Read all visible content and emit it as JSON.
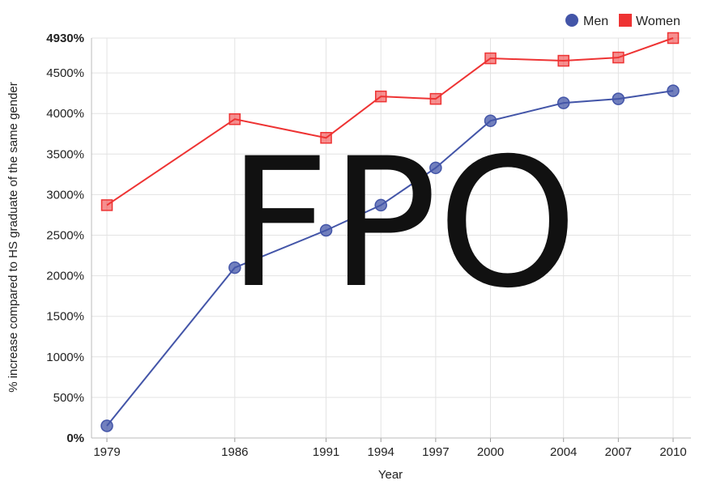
{
  "chart_data": {
    "type": "line",
    "x": [
      1979,
      1986,
      1991,
      1994,
      1997,
      2000,
      2004,
      2007,
      2010
    ],
    "x_tick_labels": [
      "1979",
      "1986",
      "1991",
      "1994",
      "1997",
      "2000",
      "2004",
      "2007",
      "2010"
    ],
    "series": [
      {
        "name": "Men",
        "color": "#4355a8",
        "marker": "circle",
        "values": [
          150,
          2100,
          2560,
          2870,
          3330,
          3910,
          4130,
          4180,
          4280
        ]
      },
      {
        "name": "Women",
        "color": "#ee3333",
        "marker": "square",
        "values": [
          2870,
          3930,
          3700,
          4210,
          4180,
          4680,
          4650,
          4690,
          4930
        ]
      }
    ],
    "y_ticks": [
      0,
      500,
      1000,
      1500,
      2000,
      2500,
      3000,
      3500,
      4000,
      4500,
      4930
    ],
    "y_tick_labels": [
      "0%",
      "500%",
      "1000%",
      "1500%",
      "2000%",
      "2500%",
      "3000%",
      "3500%",
      "4000%",
      "4500%",
      "4930%"
    ],
    "ylim": [
      0,
      4930
    ],
    "xlabel": "Year",
    "ylabel": "% increase compared to HS graduate of the same gender",
    "grid": true,
    "legend_position": "top-right",
    "watermark": "FPO"
  }
}
